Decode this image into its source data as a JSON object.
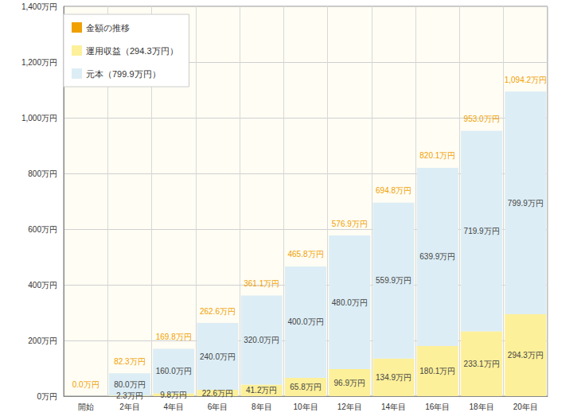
{
  "chart_data": {
    "type": "bar",
    "stacked": true,
    "grid": true,
    "legend": "upper left",
    "data_labels": true,
    "categories": [
      "開始",
      "2年目",
      "4年目",
      "6年目",
      "8年目",
      "10年目",
      "12年目",
      "14年目",
      "16年目",
      "18年目",
      "20年目"
    ],
    "ylim": [
      0,
      1400
    ],
    "yticks": [
      {
        "value": 0,
        "label": "0万円"
      },
      {
        "value": 200,
        "label": "200万円"
      },
      {
        "value": 400,
        "label": "400万円"
      },
      {
        "value": 600,
        "label": "600万円"
      },
      {
        "value": 800,
        "label": "800万円"
      },
      {
        "value": 1000,
        "label": "1,000万円"
      },
      {
        "value": 1200,
        "label": "1,200万円"
      },
      {
        "value": 1400,
        "label": "1,400万円"
      }
    ],
    "series": [
      {
        "name": "金額の推移",
        "type": "line",
        "line_style": "none",
        "color": "#f0a000",
        "values": [
          0.0,
          82.3,
          169.8,
          262.6,
          361.1,
          465.8,
          576.9,
          694.8,
          820.1,
          953.0,
          1094.2
        ],
        "value_labels": [
          "0.0万円",
          "82.3万円",
          "169.8万円",
          "262.6万円",
          "361.1万円",
          "465.8万円",
          "576.9万円",
          "694.8万円",
          "820.1万円",
          "953.0万円",
          "1,094.2万円"
        ]
      },
      {
        "name": "運用収益（294.3万円）",
        "type": "bar",
        "color": "#fdf09a",
        "values": [
          0,
          2.3,
          9.8,
          22.6,
          41.2,
          65.8,
          96.9,
          134.9,
          180.1,
          233.1,
          294.3
        ],
        "value_labels": [
          null,
          "2.3万円",
          "9.8万円",
          "22.6万円",
          "41.2万円",
          "65.8万円",
          "96.9万円",
          "134.9万円",
          "180.1万円",
          "233.1万円",
          "294.3万円"
        ]
      },
      {
        "name": "元本（799.9万円）",
        "type": "bar",
        "color": "#dcedf5",
        "values": [
          0,
          80.0,
          160.0,
          240.0,
          320.0,
          400.0,
          480.0,
          559.9,
          639.9,
          719.9,
          799.9
        ],
        "value_labels": [
          null,
          "80.0万円",
          "160.0万円",
          "240.0万円",
          "320.0万円",
          "400.0万円",
          "480.0万円",
          "559.9万円",
          "639.9万円",
          "719.9万円",
          "799.9万円"
        ]
      }
    ]
  }
}
